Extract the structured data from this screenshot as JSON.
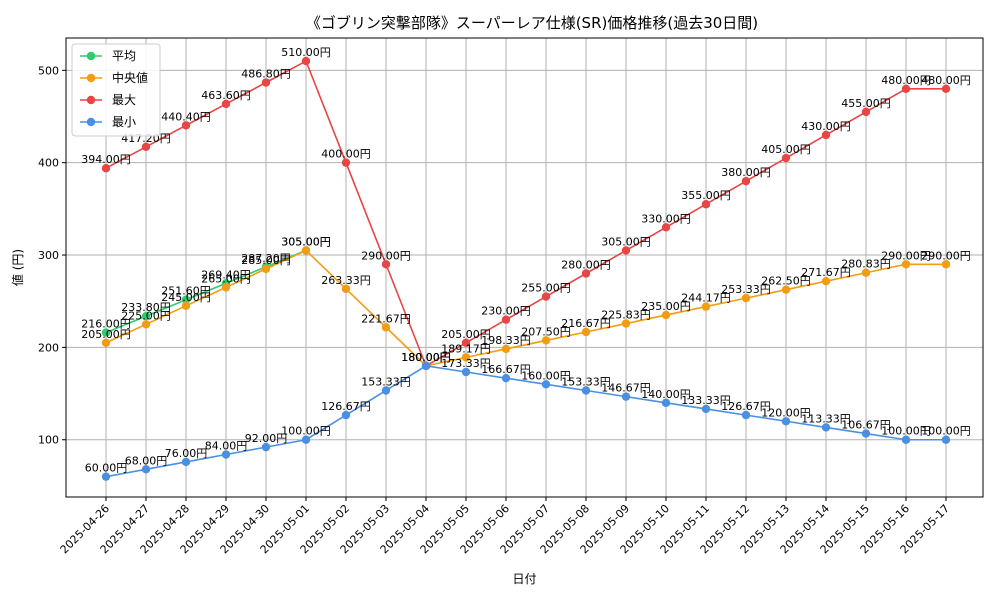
{
  "chart_data": {
    "type": "line",
    "title": "《ゴブリン突撃部隊》スーパーレア仕様(SR)価格推移(過去30日間)",
    "xlabel": "日付",
    "ylabel": "値 (円)",
    "unit_suffix": "円",
    "x": [
      "2025-04-26",
      "2025-04-27",
      "2025-04-28",
      "2025-04-29",
      "2025-04-30",
      "2025-05-01",
      "2025-05-02",
      "2025-05-03",
      "2025-05-04",
      "2025-05-05",
      "2025-05-06",
      "2025-05-07",
      "2025-05-08",
      "2025-05-09",
      "2025-05-10",
      "2025-05-11",
      "2025-05-12",
      "2025-05-13",
      "2025-05-14",
      "2025-05-15",
      "2025-05-16",
      "2025-05-17"
    ],
    "ylim": [
      38,
      535
    ],
    "yticks": [
      100,
      200,
      300,
      400,
      500
    ],
    "grid": true,
    "legend_position": "top-left",
    "series": [
      {
        "name": "平均",
        "color": "#2ecc71",
        "values": [
          216.0,
          233.8,
          251.6,
          269.4,
          287.2,
          305.0,
          null,
          null,
          null,
          null,
          null,
          null,
          null,
          null,
          null,
          null,
          null,
          null,
          null,
          null,
          null,
          null
        ]
      },
      {
        "name": "中央値",
        "color": "#f39c12",
        "values": [
          205.0,
          225.0,
          245.0,
          265.0,
          285.0,
          305.0,
          263.33,
          221.67,
          180.0,
          189.17,
          198.33,
          207.5,
          216.67,
          225.83,
          235.0,
          244.17,
          253.33,
          262.5,
          271.67,
          280.83,
          290.0,
          290.0
        ]
      },
      {
        "name": "最大",
        "color": "#e84545",
        "values": [
          394.0,
          417.2,
          440.4,
          463.6,
          486.8,
          510.0,
          400.0,
          290.0,
          180.0,
          205.0,
          230.0,
          255.0,
          280.0,
          305.0,
          330.0,
          355.0,
          380.0,
          405.0,
          430.0,
          455.0,
          480.0,
          480.0
        ]
      },
      {
        "name": "最小",
        "color": "#4a90e2",
        "values": [
          60.0,
          68.0,
          76.0,
          84.0,
          92.0,
          100.0,
          126.67,
          153.33,
          180.0,
          173.33,
          166.67,
          160.0,
          153.33,
          146.67,
          140.0,
          133.33,
          126.67,
          120.0,
          113.33,
          106.67,
          100.0,
          100.0
        ]
      }
    ]
  }
}
